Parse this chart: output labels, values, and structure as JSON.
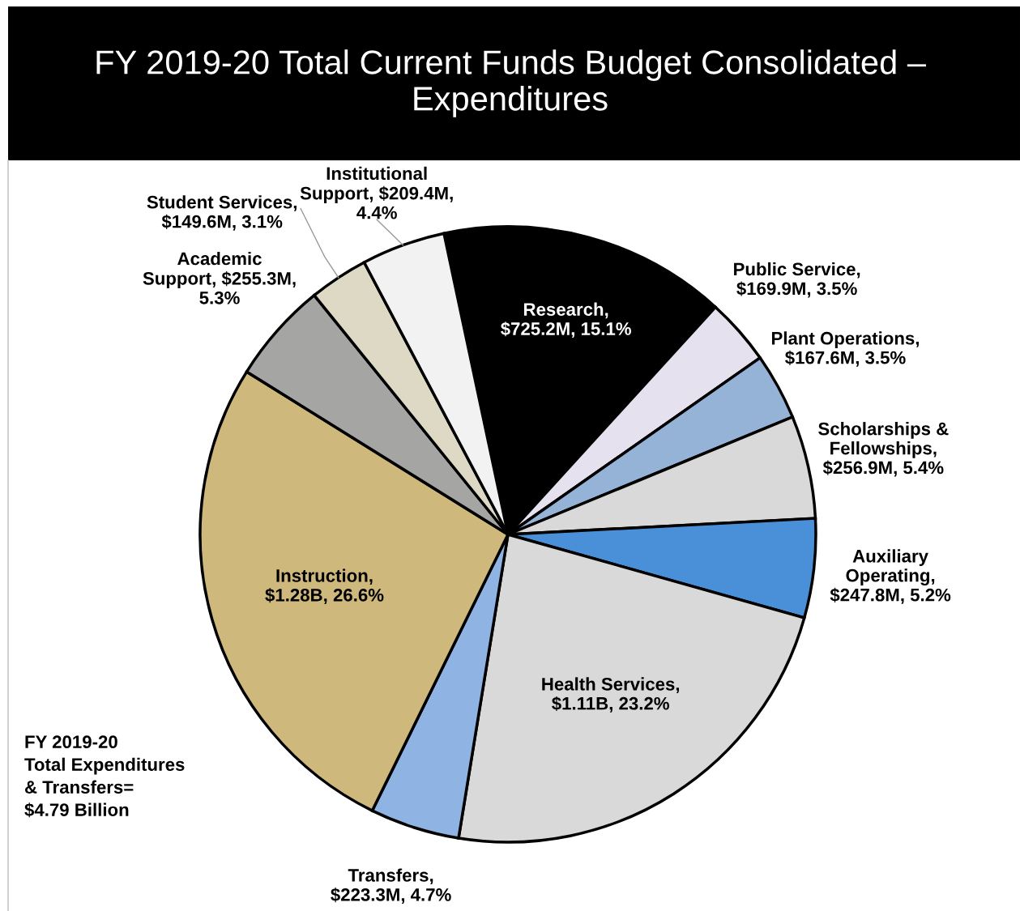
{
  "chart_data": {
    "type": "pie",
    "title": "FY 2019-20 Total Current Funds Budget Consolidated – Expenditures",
    "categories": [
      "Research",
      "Public Service",
      "Plant Operations",
      "Scholarships &\nFellowships",
      "Auxiliary\nOperating",
      "Health Services",
      "Transfers",
      "Instruction",
      "Academic\nSupport",
      "Student Services",
      "Institutional\nSupport"
    ],
    "values": [
      15.1,
      3.5,
      3.5,
      5.4,
      5.2,
      23.2,
      4.7,
      26.6,
      5.3,
      3.1,
      4.4
    ],
    "value_labels": [
      ",\n$725.2M, 15.1%",
      ",\n$169.9M, 3.5%",
      ",\n$167.6M, 3.5%",
      ",\n$256.9M, 5.4%",
      ",\n$247.8M, 5.2%",
      ",\n$1.11B, 23.2%",
      ",\n$223.3M, 4.7%",
      ",\n$1.28B, 26.6%",
      ", $255.3M,\n5.3%",
      ",\n$149.6M, 3.1%",
      ", $209.4M,\n4.4%"
    ],
    "colors": [
      "#000000",
      "#e6e1ee",
      "#95b3d7",
      "#d9d9d9",
      "#4a90d9",
      "#d9d9d9",
      "#8fb4e3",
      "#cfb87c",
      "#a5a5a4",
      "#ddd9c4",
      "#f2f2f2"
    ],
    "annotations": [
      "FY 2019-20\nTotal Expenditures\n& Transfers=\n$4.79 Billion"
    ]
  }
}
